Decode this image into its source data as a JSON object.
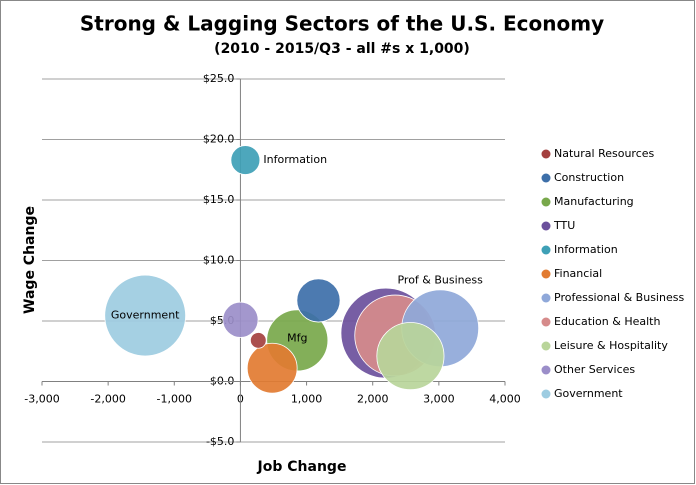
{
  "chart_data": {
    "type": "bubble",
    "title": "Strong & Lagging Sectors of the U.S. Economy",
    "subtitle": "(2010 - 2015/Q3 - all #s x 1,000)",
    "x_label": "Job Change",
    "y_label": "Wage Change",
    "xlim": [
      -3000,
      4000
    ],
    "xticks": [
      {
        "value": -3000,
        "label": "-3,000"
      },
      {
        "value": -2000,
        "label": "-2,000"
      },
      {
        "value": -1000,
        "label": "-1,000"
      },
      0,
      {
        "value": 1000,
        "label": "1,000"
      },
      {
        "value": 2000,
        "label": "2,000"
      },
      {
        "value": 3000,
        "label": "3,000"
      },
      {
        "value": 4000,
        "label": "4,000"
      }
    ],
    "ylim": [
      -5,
      25
    ],
    "yticks": [
      {
        "value": -5,
        "label": "-$5.0"
      },
      {
        "value": 0,
        "label": "$0.0"
      },
      {
        "value": 5,
        "label": "$5.0"
      },
      {
        "value": 10,
        "label": "$10.0"
      },
      {
        "value": 15,
        "label": "$15.0"
      },
      {
        "value": 20,
        "label": "$20.0"
      },
      {
        "value": 25,
        "label": "$25.0"
      }
    ],
    "grid": true,
    "legend": "right",
    "series": [
      {
        "name": "Natural Resources",
        "color": "#a4403f",
        "x": [
          270
        ],
        "values": [
          3.4
        ],
        "sizes": [
          800
        ]
      },
      {
        "name": "Construction",
        "color": "#3d6fa9",
        "x": [
          1180
        ],
        "values": [
          6.7
        ],
        "sizes": [
          6000
        ]
      },
      {
        "name": "Manufacturing",
        "color": "#78a84b",
        "x": [
          860
        ],
        "values": [
          3.4
        ],
        "sizes": [
          12000
        ],
        "label": "Mfg"
      },
      {
        "name": "TTU",
        "color": "#6b509c",
        "x": [
          2200
        ],
        "values": [
          4.0
        ],
        "sizes": [
          26000
        ]
      },
      {
        "name": "Information",
        "color": "#3ea0b6",
        "x": [
          75
        ],
        "values": [
          18.3
        ],
        "sizes": [
          2700
        ],
        "label": "Information"
      },
      {
        "name": "Financial",
        "color": "#e27b31",
        "x": [
          480
        ],
        "values": [
          1.1
        ],
        "sizes": [
          8000
        ]
      },
      {
        "name": "Professional & Business",
        "color": "#8fa8d9",
        "x": [
          3020
        ],
        "values": [
          4.4
        ],
        "sizes": [
          19000
        ],
        "label": "Prof & Business"
      },
      {
        "name": "Education & Health",
        "color": "#d68b8b",
        "x": [
          2340
        ],
        "values": [
          3.8
        ],
        "sizes": [
          21000
        ]
      },
      {
        "name": "Leisure & Hospitality",
        "color": "#b9d59a",
        "x": [
          2570
        ],
        "values": [
          2.1
        ],
        "sizes": [
          14500
        ]
      },
      {
        "name": "Other Services",
        "color": "#9b8ec9",
        "x": [
          0
        ],
        "values": [
          5.1
        ],
        "sizes": [
          4000
        ]
      },
      {
        "name": "Government",
        "color": "#9dcce1",
        "x": [
          -1440
        ],
        "values": [
          5.45
        ],
        "sizes": [
          21000
        ],
        "label": "Government"
      }
    ]
  }
}
